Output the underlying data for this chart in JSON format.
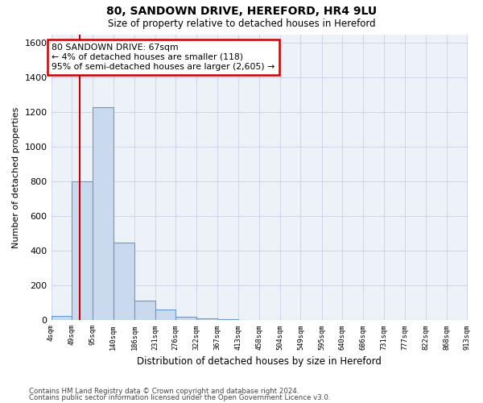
{
  "title1": "80, SANDOWN DRIVE, HEREFORD, HR4 9LU",
  "title2": "Size of property relative to detached houses in Hereford",
  "xlabel": "Distribution of detached houses by size in Hereford",
  "ylabel": "Number of detached properties",
  "bar_edges": [
    4,
    49,
    95,
    140,
    186,
    231,
    276,
    322,
    367,
    413,
    458,
    504,
    549,
    595,
    640,
    686,
    731,
    777,
    822,
    868,
    913
  ],
  "bar_heights": [
    25,
    800,
    1230,
    450,
    115,
    60,
    20,
    10,
    5,
    3,
    2,
    1,
    0,
    0,
    0,
    0,
    0,
    0,
    0,
    0
  ],
  "bar_color": "#c9d9ee",
  "bar_edgecolor": "#6699cc",
  "vline_x": 67,
  "vline_color": "#cc0000",
  "ylim": [
    0,
    1650
  ],
  "yticks": [
    0,
    200,
    400,
    600,
    800,
    1000,
    1200,
    1400,
    1600
  ],
  "annotation_line1": "80 SANDOWN DRIVE: 67sqm",
  "annotation_line2": "← 4% of detached houses are smaller (118)",
  "annotation_line3": "95% of semi-detached houses are larger (2,605) →",
  "annotation_box_color": "#cc0000",
  "annotation_bg": "#ffffff",
  "footnote1": "Contains HM Land Registry data © Crown copyright and database right 2024.",
  "footnote2": "Contains public sector information licensed under the Open Government Licence v3.0.",
  "grid_color": "#ccd6e8",
  "background_color": "#edf2f9"
}
